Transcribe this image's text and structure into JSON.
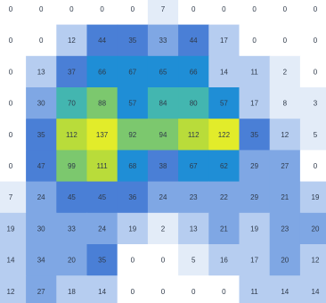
{
  "chart_data": {
    "type": "heatmap",
    "title": "",
    "xlabel": "",
    "ylabel": "",
    "legend": "none",
    "grid": false,
    "values": [
      [
        0,
        0,
        0,
        0,
        0,
        7,
        0,
        0,
        0,
        0,
        0
      ],
      [
        0,
        0,
        12,
        44,
        35,
        33,
        44,
        17,
        0,
        0,
        0
      ],
      [
        0,
        13,
        37,
        66,
        67,
        65,
        66,
        14,
        11,
        2,
        0
      ],
      [
        0,
        30,
        70,
        88,
        57,
        84,
        80,
        57,
        17,
        8,
        3
      ],
      [
        0,
        35,
        112,
        137,
        92,
        94,
        112,
        122,
        35,
        12,
        5
      ],
      [
        0,
        47,
        99,
        111,
        68,
        38,
        67,
        62,
        29,
        27,
        0
      ],
      [
        7,
        24,
        45,
        45,
        36,
        24,
        23,
        22,
        29,
        21,
        19
      ],
      [
        19,
        30,
        33,
        24,
        19,
        2,
        13,
        21,
        19,
        23,
        20
      ],
      [
        14,
        34,
        20,
        35,
        0,
        0,
        5,
        16,
        17,
        20,
        12
      ],
      [
        12,
        27,
        18,
        14,
        0,
        0,
        0,
        0,
        11,
        14,
        14
      ]
    ],
    "colors": [
      "#ffffff",
      "#e3ecf8",
      "#b6cdf0",
      "#7fa7e4",
      "#4a7fd6",
      "#1f8ed6",
      "#43b6b0",
      "#7cc86e",
      "#b9dc3a",
      "#e2ec2a"
    ]
  }
}
